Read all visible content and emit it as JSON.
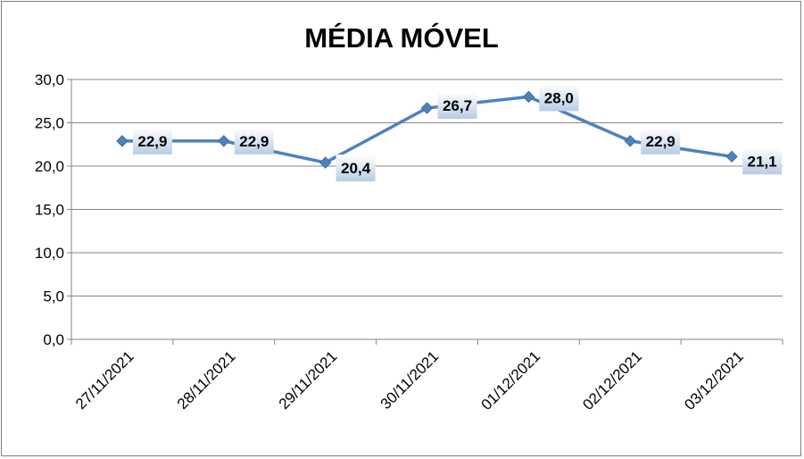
{
  "chart_data": {
    "type": "line",
    "title": "MÉDIA MÓVEL",
    "categories": [
      "27/11/2021",
      "28/11/2021",
      "29/11/2021",
      "30/11/2021",
      "01/12/2021",
      "02/12/2021",
      "03/12/2021"
    ],
    "series": [
      {
        "values": [
          22.9,
          22.9,
          20.4,
          26.7,
          28.0,
          22.9,
          21.1
        ]
      }
    ],
    "data_labels": [
      "22,9",
      "22,9",
      "20,4",
      "26,7",
      "28,0",
      "22,9",
      "21,1"
    ],
    "y_ticks": [
      "0,0",
      "5,0",
      "10,0",
      "15,0",
      "20,0",
      "25,0",
      "30,0"
    ],
    "ylim": [
      0,
      30
    ],
    "grid": true,
    "legend": "none",
    "colors": {
      "line": "#4f81bd",
      "grid": "#868686",
      "label_box_top": "#ffffff",
      "label_box_bottom": "#b8cce4"
    }
  }
}
